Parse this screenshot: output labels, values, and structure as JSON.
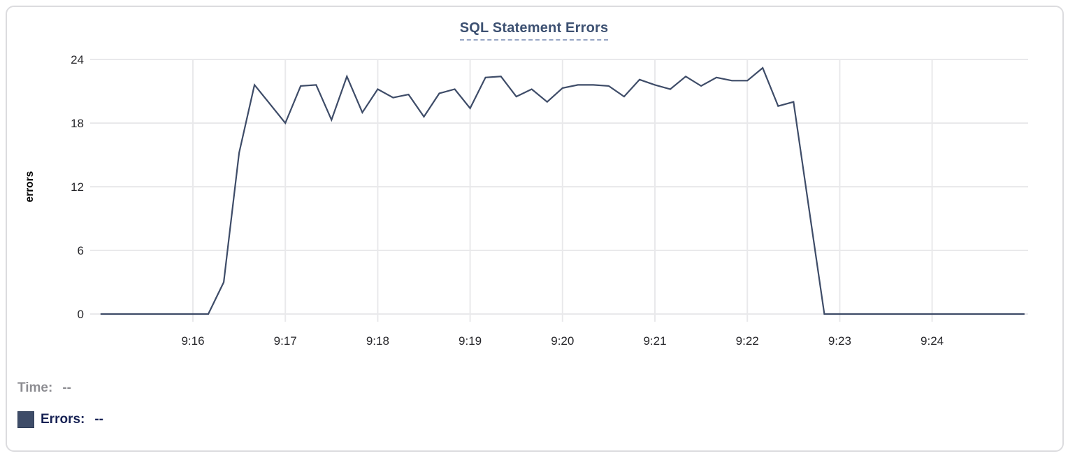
{
  "header": {
    "title": "SQL Statement Errors"
  },
  "chart_data": {
    "type": "line",
    "title": "SQL Statement Errors",
    "xlabel": "",
    "ylabel": "errors",
    "ylim": [
      0,
      24
    ],
    "yticks": [
      0,
      6,
      12,
      18,
      24
    ],
    "xtick_labels": [
      "9:16",
      "9:17",
      "9:18",
      "9:19",
      "9:20",
      "9:21",
      "9:22",
      "9:23",
      "9:24"
    ],
    "xtick_seconds": [
      60,
      120,
      180,
      240,
      300,
      360,
      420,
      480,
      540
    ],
    "x_start_clock": "9:15:00",
    "x_end_clock": "9:25:00",
    "x_step_seconds": 10,
    "grid": true,
    "line_color": "#3e4c68",
    "grid_color": "#e9e9eb",
    "series": [
      {
        "name": "Errors",
        "values": [
          0,
          0,
          0,
          0,
          0,
          0,
          0,
          0,
          3,
          15.2,
          21.6,
          19.8,
          18,
          21.5,
          21.6,
          18.3,
          22.4,
          19,
          21.2,
          20.4,
          20.7,
          18.6,
          20.8,
          21.2,
          19.4,
          22.3,
          22.4,
          20.5,
          21.2,
          20,
          21.3,
          21.6,
          21.6,
          21.5,
          20.5,
          22.1,
          21.6,
          21.2,
          22.4,
          21.5,
          22.3,
          22,
          22,
          23.2,
          19.6,
          20,
          10,
          0,
          0,
          0,
          0,
          0,
          0,
          0,
          0,
          0,
          0,
          0,
          0,
          0,
          0
        ]
      }
    ]
  },
  "footer": {
    "time_label": "Time:",
    "time_value": "--",
    "errors_label": "Errors:",
    "errors_value": "--",
    "swatch_color": "#3e4c68"
  }
}
